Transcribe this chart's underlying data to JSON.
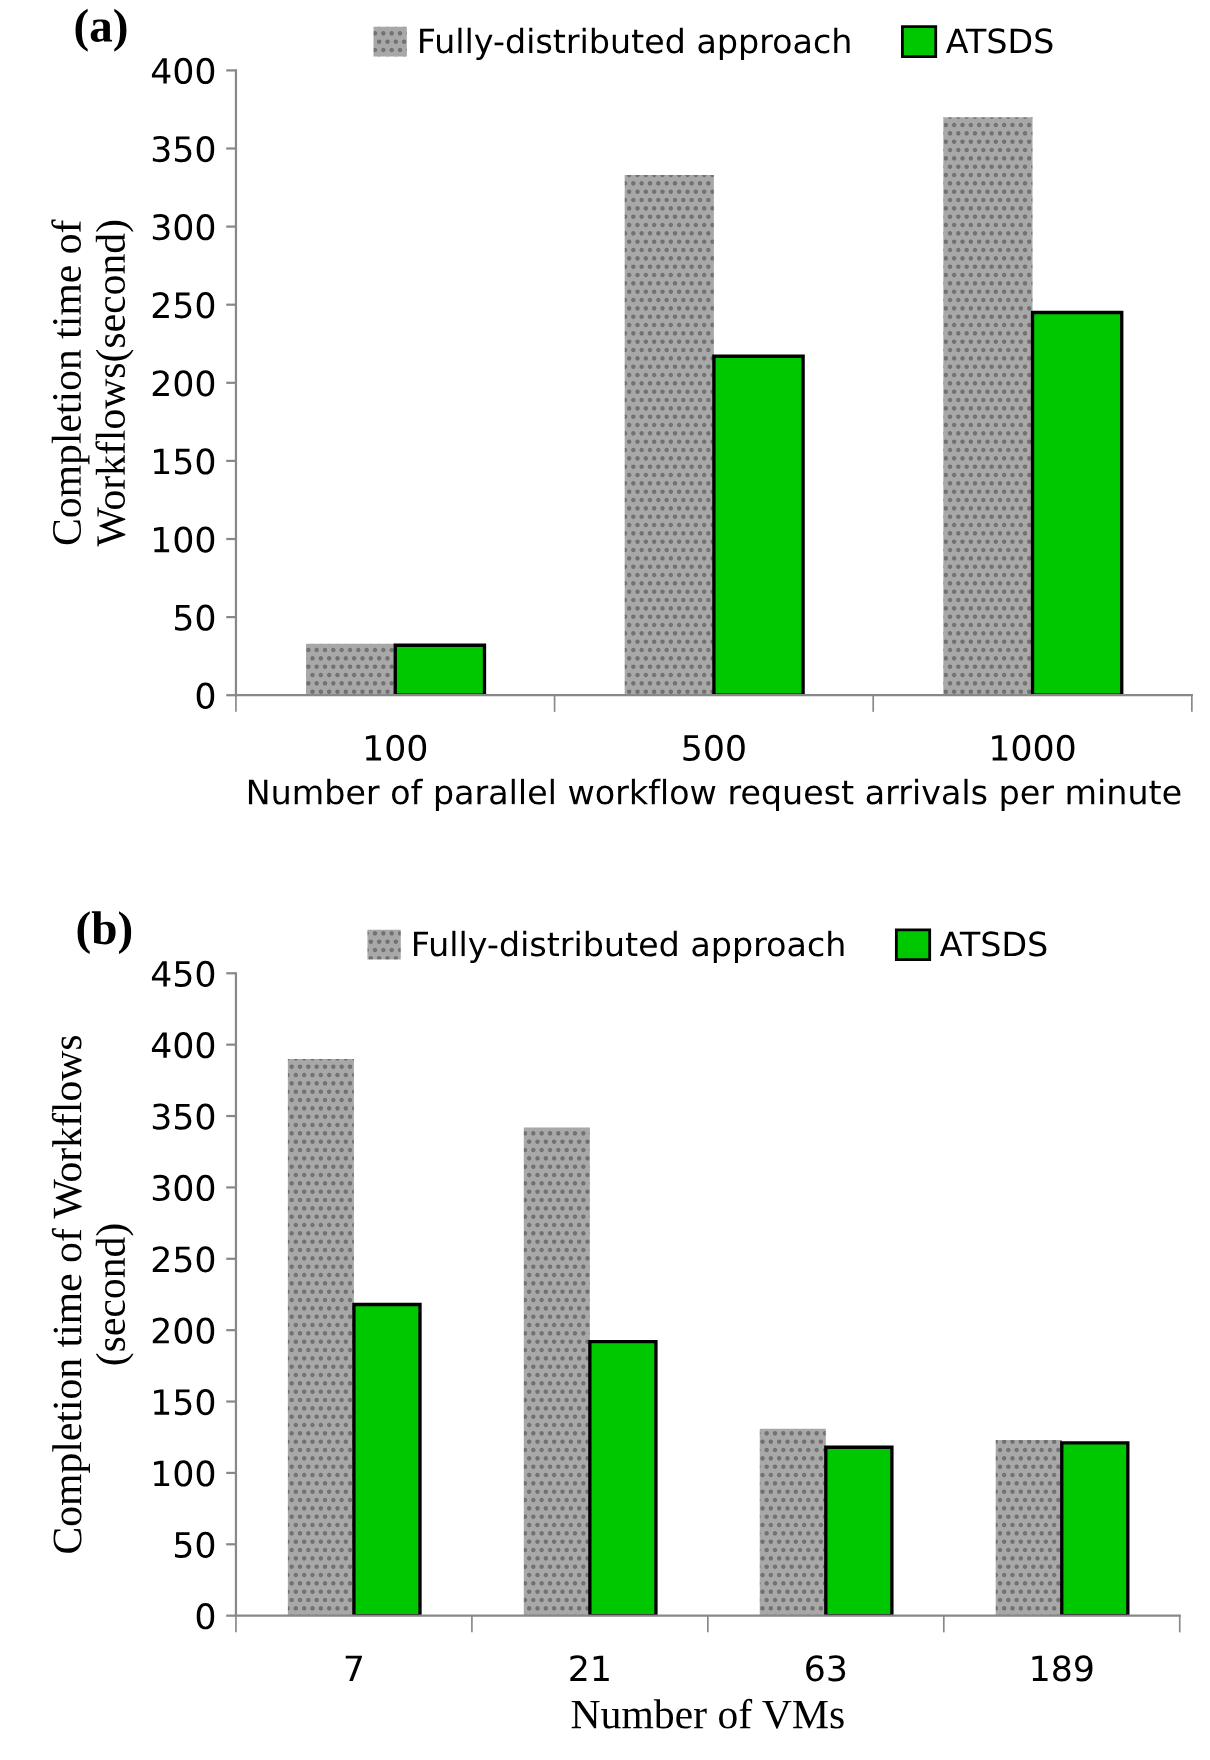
{
  "chart_data": [
    {
      "type": "bar",
      "title": "(a)",
      "xlabel": "Number of parallel workflow request arrivals per minute",
      "ylabel": "Completion time of\nWorkflows(second)",
      "categories": [
        "100",
        "500",
        "1000"
      ],
      "series": [
        {
          "name": "Fully-distributed approach",
          "color": "#a8a8a8",
          "values": [
            33,
            333,
            370
          ]
        },
        {
          "name": "ATSDS",
          "color": "#00c800",
          "values": [
            32,
            217,
            245
          ]
        }
      ],
      "ylim": [
        0,
        400
      ],
      "yticks": [
        0,
        50,
        100,
        150,
        200,
        250,
        300,
        350,
        400
      ],
      "legend": "top",
      "grid": false
    },
    {
      "type": "bar",
      "title": "(b)",
      "xlabel": "Number of VMs",
      "ylabel": "Completion time of Workflows\n(second)",
      "categories": [
        "7",
        "21",
        "63",
        "189"
      ],
      "series": [
        {
          "name": "Fully-distributed approach",
          "color": "#a8a8a8",
          "values": [
            390,
            342,
            131,
            123
          ]
        },
        {
          "name": "ATSDS",
          "color": "#00c800",
          "values": [
            218,
            192,
            118,
            121
          ]
        }
      ],
      "ylim": [
        0,
        450
      ],
      "yticks": [
        0,
        50,
        100,
        150,
        200,
        250,
        300,
        350,
        400,
        450
      ],
      "legend": "top",
      "grid": false
    }
  ]
}
